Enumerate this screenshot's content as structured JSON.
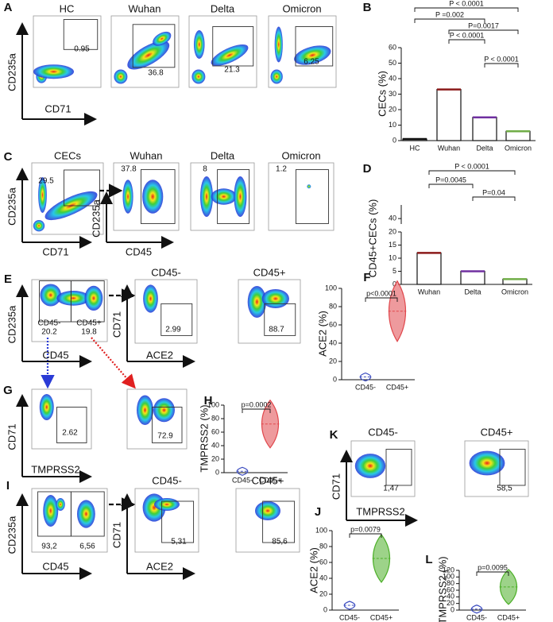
{
  "panels": {
    "A": {
      "letter": "A",
      "titles": [
        "HC",
        "Wuhan",
        "Delta",
        "Omicron"
      ],
      "gates": [
        "0.95",
        "36.8",
        "21.3",
        "6.25"
      ],
      "y_axis": [
        "CD235a"
      ],
      "x_axis": [
        "CD71"
      ]
    },
    "C": {
      "letter": "C",
      "titles": [
        "CECs",
        "Wuhan",
        "Delta",
        "Omicron"
      ],
      "gates": [
        "29.5",
        "37.8",
        "8",
        "1.2"
      ],
      "y_axis": [
        "CD235a",
        "CD235a"
      ],
      "x_axis": [
        "CD71",
        "CD45"
      ]
    },
    "E": {
      "letter": "E",
      "split_gates": [
        "CD45-",
        "20.2",
        "CD45+",
        "19.8"
      ],
      "titles": [
        "CD45-",
        "CD45+"
      ],
      "gates": [
        "2.99",
        "88.7"
      ],
      "y_axis": [
        "CD235a",
        "CD71"
      ],
      "x_axis": [
        "CD45",
        "ACE2"
      ]
    },
    "G": {
      "letter": "G",
      "gates": [
        "2.62",
        "72.9"
      ],
      "y_axis": [
        "CD71"
      ],
      "x_axis": [
        "TMPRSS2"
      ]
    },
    "K": {
      "letter": "K",
      "titles": [
        "CD45-",
        "CD45+"
      ],
      "gates": [
        "1,47",
        "58,5"
      ],
      "y_axis": [
        "CD71"
      ],
      "x_axis": [
        "TMPRSS2"
      ]
    },
    "I": {
      "letter": "I",
      "split_gates": [
        "93,2",
        "6,56"
      ],
      "titles": [
        "CD45-",
        "CD45+"
      ],
      "gates": [
        "5,31",
        "85,6"
      ],
      "y_axis": [
        "CD235a",
        "CD71"
      ],
      "x_axis": [
        "CD45",
        "ACE2"
      ]
    }
  },
  "chart_data": [
    {
      "type": "bar",
      "letter": "B",
      "ylabel": "CECs (%)",
      "categories": [
        "HC",
        "Wuhan",
        "Delta",
        "Omicron"
      ],
      "values": [
        1,
        33,
        15,
        6
      ],
      "colors": [
        "#111111",
        "#8b1a1a",
        "#7030a0",
        "#70ad47"
      ],
      "ylim": [
        0,
        60
      ],
      "yticks": [
        0,
        10,
        20,
        30,
        40,
        50,
        60
      ],
      "p_values": [
        "P < 0.0001",
        "P =0.002",
        "P=0.0017",
        "P < 0.0001",
        "P < 0.0001"
      ]
    },
    {
      "type": "bar",
      "letter": "D",
      "ylabel": "CD45+CECs (%)",
      "categories": [
        "Wuhan",
        "Delta",
        "Omicron"
      ],
      "values": [
        12,
        5,
        2
      ],
      "colors": [
        "#8b1a1a",
        "#7030a0",
        "#70ad47"
      ],
      "ylim": [
        0,
        45
      ],
      "ybreak": [
        20,
        38
      ],
      "yticks": [
        0,
        5,
        10,
        15,
        20,
        40
      ],
      "p_values": [
        "P < 0.0001",
        "P=0.0045",
        "P=0.04"
      ]
    },
    {
      "type": "violin",
      "letter": "F",
      "ylabel": "ACE2 (%)",
      "categories": [
        "CD45-",
        "CD45+"
      ],
      "values": [
        3,
        75
      ],
      "colors": [
        "#3b4cc0",
        "#e0474c"
      ],
      "ylim": [
        0,
        100
      ],
      "yticks": [
        0,
        20,
        40,
        60,
        80,
        100
      ],
      "p_values": [
        "p<0.0001"
      ]
    },
    {
      "type": "violin",
      "letter": "H",
      "ylabel": "TMPRSS2 (%)",
      "categories": [
        "CD45-",
        "CD45+"
      ],
      "values": [
        2,
        72
      ],
      "colors": [
        "#3b4cc0",
        "#e0474c"
      ],
      "ylim": [
        0,
        100
      ],
      "yticks": [
        0,
        20,
        40,
        60,
        80,
        100
      ],
      "p_values": [
        "p=0.0002"
      ]
    },
    {
      "type": "violin",
      "letter": "J",
      "ylabel": "ACE2 (%)",
      "categories": [
        "CD45-",
        "CD45+"
      ],
      "values": [
        6,
        65
      ],
      "colors": [
        "#3b4cc0",
        "#4caf28"
      ],
      "ylim": [
        0,
        100
      ],
      "yticks": [
        0,
        20,
        40,
        60,
        80,
        100
      ],
      "p_values": [
        "p=0.0079"
      ]
    },
    {
      "type": "violin",
      "letter": "L",
      "ylabel": "TMPRSS2 (%)",
      "categories": [
        "CD45-",
        "CD45+"
      ],
      "values": [
        3,
        70
      ],
      "colors": [
        "#3b4cc0",
        "#4caf28"
      ],
      "ylim": [
        0,
        120
      ],
      "yticks": [
        0,
        20,
        40,
        60,
        80,
        100,
        120
      ],
      "p_values": [
        "p=0.0095"
      ]
    }
  ]
}
